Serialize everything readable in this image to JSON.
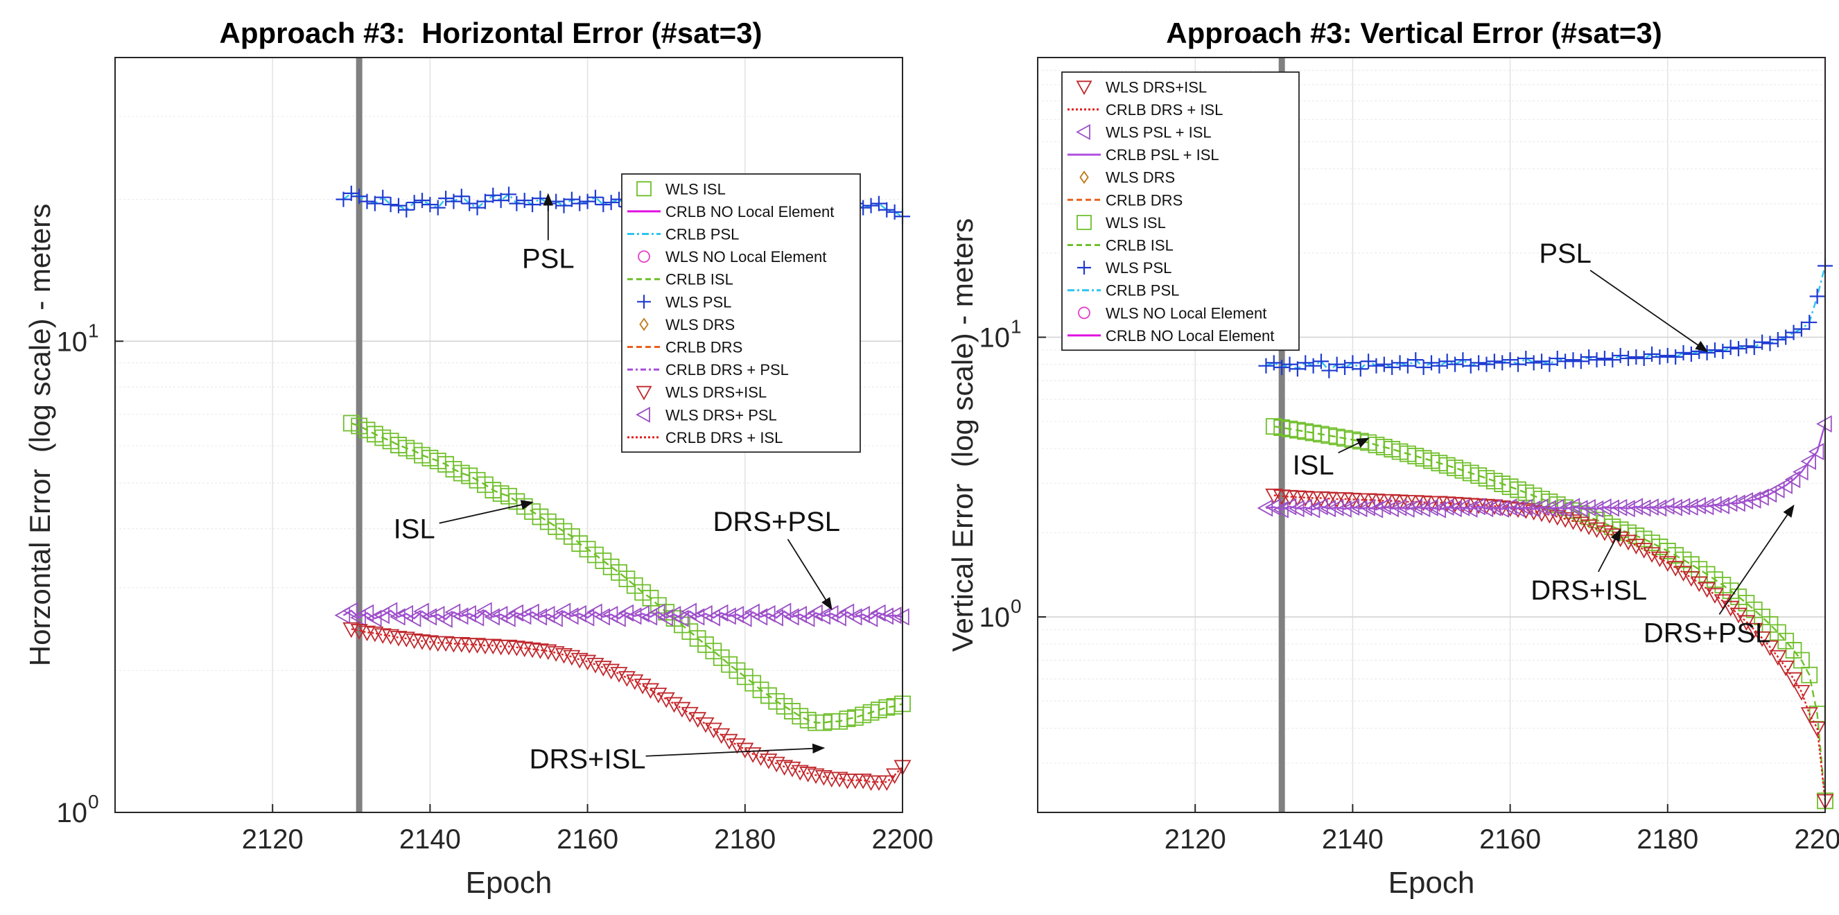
{
  "chart_data": [
    {
      "type": "line",
      "title": "Approach #3:  Horizontal Error (#sat=3)",
      "xlabel": "Epoch",
      "ylabel": "Horzontal Error  (log scale) - meters",
      "xlim": [
        2100,
        2200
      ],
      "ylim": [
        1,
        40
      ],
      "yscale": "log",
      "grid": true,
      "xticks": [
        "2120",
        "2140",
        "2160",
        "2180",
        "2200"
      ],
      "yticks": [
        {
          "base": "10",
          "exp": "0"
        },
        {
          "base": "10",
          "exp": "1"
        }
      ],
      "event_line_x": 2131,
      "legend_position": "upper-right",
      "legend": [
        {
          "label": "WLS ISL",
          "series": "isl",
          "kind": "marker"
        },
        {
          "label": "CRLB NO Local Element",
          "series": "none",
          "kind": "line"
        },
        {
          "label": "CRLB PSL",
          "series": "psl",
          "kind": "line"
        },
        {
          "label": "WLS NO Local Element",
          "series": "none",
          "kind": "marker"
        },
        {
          "label": "CRLB ISL",
          "series": "isl",
          "kind": "line"
        },
        {
          "label": "WLS PSL",
          "series": "psl",
          "kind": "marker"
        },
        {
          "label": "WLS DRS",
          "series": "drs",
          "kind": "marker"
        },
        {
          "label": "CRLB DRS",
          "series": "drs",
          "kind": "line"
        },
        {
          "label": "CRLB DRS + PSL",
          "series": "drspsl",
          "kind": "line"
        },
        {
          "label": "WLS DRS+ISL",
          "series": "drsisl",
          "kind": "marker"
        },
        {
          "label": "WLS DRS+ PSL",
          "series": "drspsl",
          "kind": "marker"
        },
        {
          "label": "CRLB DRS + ISL",
          "series": "drsisl",
          "kind": "line"
        }
      ],
      "annotations": [
        {
          "text": "PSL",
          "text_at": [
            2155,
            15.0
          ],
          "arrow_to": [
            2155,
            20.5
          ]
        },
        {
          "text": "ISL",
          "text_at": [
            2138,
            4.0
          ],
          "arrow_to": [
            2153,
            4.55
          ]
        },
        {
          "text": "DRS+PSL",
          "text_at": [
            2184,
            4.15
          ],
          "arrow_to": [
            2191,
            2.7
          ]
        },
        {
          "text": "DRS+ISL",
          "text_at": [
            2160,
            1.3
          ],
          "arrow_to": [
            2190,
            1.37
          ]
        }
      ],
      "series": [
        {
          "key": "psl",
          "name": "PSL",
          "x_start": 2129,
          "x_end": 2200,
          "values": [
            20.0,
            20.6,
            20.3,
            19.8,
            19.6,
            20.2,
            19.5,
            19.4,
            19.0,
            19.7,
            19.9,
            19.5,
            19.2,
            20.1,
            19.8,
            20.3,
            19.6,
            19.2,
            19.8,
            20.4,
            19.9,
            20.5,
            19.6,
            19.9,
            19.5,
            20.1,
            19.6,
            19.8,
            19.4,
            20.0,
            19.6,
            19.8,
            20.2,
            19.5,
            19.7,
            20.0,
            19.3,
            19.9,
            20.1,
            19.8,
            19.4,
            19.6,
            20.0,
            19.7,
            19.8,
            19.5,
            20.1,
            19.6,
            19.4,
            20.2,
            19.7,
            19.5,
            19.8,
            19.3,
            19.6,
            20.0,
            19.4,
            19.2,
            19.8,
            19.6,
            19.5,
            19.7,
            19.3,
            19.1,
            19.5,
            19.6,
            19.2,
            19.4,
            19.6,
            19.0,
            18.8,
            18.4
          ]
        },
        {
          "key": "isl",
          "name": "ISL",
          "x_start": 2130,
          "x_end": 2200,
          "values": [
            6.7,
            6.61,
            6.48,
            6.35,
            6.24,
            6.14,
            6.02,
            5.93,
            5.85,
            5.73,
            5.65,
            5.57,
            5.48,
            5.35,
            5.25,
            5.18,
            5.07,
            4.96,
            4.83,
            4.75,
            4.69,
            4.57,
            4.46,
            4.35,
            4.24,
            4.14,
            4.04,
            3.95,
            3.85,
            3.72,
            3.62,
            3.52,
            3.42,
            3.32,
            3.23,
            3.13,
            3.03,
            2.93,
            2.85,
            2.75,
            2.66,
            2.58,
            2.5,
            2.42,
            2.34,
            2.27,
            2.2,
            2.13,
            2.06,
            2.0,
            1.94,
            1.88,
            1.82,
            1.77,
            1.72,
            1.68,
            1.64,
            1.6,
            1.57,
            1.55,
            1.55,
            1.56,
            1.56,
            1.58,
            1.59,
            1.61,
            1.63,
            1.65,
            1.67,
            1.68,
            1.7
          ]
        },
        {
          "key": "drspsl",
          "name": "DRS+PSL",
          "x_start": 2129,
          "x_end": 2200,
          "values": [
            2.62,
            2.68,
            2.59,
            2.65,
            2.58,
            2.62,
            2.68,
            2.6,
            2.64,
            2.58,
            2.67,
            2.6,
            2.63,
            2.57,
            2.66,
            2.61,
            2.64,
            2.59,
            2.68,
            2.6,
            2.63,
            2.58,
            2.65,
            2.61,
            2.66,
            2.6,
            2.63,
            2.58,
            2.67,
            2.61,
            2.64,
            2.59,
            2.66,
            2.6,
            2.63,
            2.58,
            2.65,
            2.61,
            2.64,
            2.6,
            2.66,
            2.59,
            2.63,
            2.58,
            2.67,
            2.6,
            2.64,
            2.59,
            2.65,
            2.61,
            2.63,
            2.58,
            2.66,
            2.6,
            2.64,
            2.59,
            2.67,
            2.6,
            2.63,
            2.58,
            2.65,
            2.61,
            2.64,
            2.59,
            2.66,
            2.6,
            2.63,
            2.58,
            2.65,
            2.61,
            2.62,
            2.6
          ]
        },
        {
          "key": "drsisl",
          "name": "DRS+ISL",
          "x_start": 2130,
          "x_end": 2200,
          "values": [
            2.45,
            2.43,
            2.41,
            2.4,
            2.38,
            2.37,
            2.35,
            2.34,
            2.32,
            2.31,
            2.3,
            2.29,
            2.29,
            2.28,
            2.28,
            2.27,
            2.27,
            2.26,
            2.26,
            2.25,
            2.25,
            2.24,
            2.23,
            2.22,
            2.21,
            2.2,
            2.18,
            2.16,
            2.14,
            2.11,
            2.09,
            2.06,
            2.03,
            2.0,
            1.97,
            1.93,
            1.9,
            1.86,
            1.82,
            1.78,
            1.74,
            1.7,
            1.66,
            1.62,
            1.58,
            1.54,
            1.5,
            1.46,
            1.42,
            1.39,
            1.36,
            1.33,
            1.31,
            1.29,
            1.27,
            1.25,
            1.24,
            1.22,
            1.21,
            1.2,
            1.19,
            1.18,
            1.18,
            1.17,
            1.17,
            1.17,
            1.16,
            1.16,
            1.16,
            1.2,
            1.25
          ]
        }
      ]
    },
    {
      "type": "line",
      "title": "Approach #3: Vertical Error (#sat=3)",
      "xlabel": "Epoch",
      "ylabel": "Vertical Error  (log scale) - meters",
      "xlim": [
        2100,
        2200
      ],
      "ylim": [
        0.2,
        100
      ],
      "yscale": "log",
      "grid": true,
      "xticks": [
        "2120",
        "2140",
        "2160",
        "2180",
        "2200"
      ],
      "yticks": [
        {
          "base": "10",
          "exp": "0"
        },
        {
          "base": "10",
          "exp": "1"
        }
      ],
      "event_line_x": 2131,
      "legend_position": "upper-left",
      "legend": [
        {
          "label": "WLS DRS+ISL",
          "series": "drsisl",
          "kind": "marker"
        },
        {
          "label": "CRLB DRS + ISL",
          "series": "drsisl",
          "kind": "line"
        },
        {
          "label": "WLS PSL + ISL",
          "series": "pslisl",
          "kind": "marker"
        },
        {
          "label": "CRLB PSL + ISL",
          "series": "pslisl",
          "kind": "line"
        },
        {
          "label": "WLS DRS",
          "series": "drs",
          "kind": "marker"
        },
        {
          "label": "CRLB DRS",
          "series": "drs",
          "kind": "line"
        },
        {
          "label": "WLS ISL",
          "series": "isl",
          "kind": "marker"
        },
        {
          "label": "CRLB ISL",
          "series": "isl",
          "kind": "line"
        },
        {
          "label": "WLS PSL",
          "series": "psl",
          "kind": "marker"
        },
        {
          "label": "CRLB PSL",
          "series": "psl",
          "kind": "line"
        },
        {
          "label": "WLS NO Local Element",
          "series": "none",
          "kind": "marker"
        },
        {
          "label": "CRLB NO Local Element",
          "series": "none",
          "kind": "line"
        }
      ],
      "annotations": [
        {
          "text": "PSL",
          "text_at": [
            2167,
            20.0
          ],
          "arrow_to": [
            2185,
            8.9
          ]
        },
        {
          "text": "ISL",
          "text_at": [
            2135,
            3.5
          ],
          "arrow_to": [
            2142,
            4.35
          ]
        },
        {
          "text": "DRS+ISL",
          "text_at": [
            2170,
            1.25
          ],
          "arrow_to": [
            2174,
            2.05
          ]
        },
        {
          "text": "DRS+PSL",
          "text_at": [
            2185,
            0.88
          ],
          "arrow_to": [
            2196,
            2.5
          ]
        }
      ],
      "series": [
        {
          "key": "psl",
          "name": "PSL",
          "x_start": 2129,
          "x_end": 2200,
          "values": [
            7.9,
            8.1,
            7.8,
            8.0,
            7.7,
            8.1,
            7.9,
            8.2,
            7.6,
            8.0,
            7.8,
            8.1,
            7.7,
            8.2,
            7.9,
            8.0,
            7.8,
            8.1,
            7.9,
            8.3,
            7.8,
            8.1,
            7.9,
            8.2,
            8.0,
            8.3,
            7.9,
            8.1,
            8.0,
            8.2,
            8.1,
            8.3,
            8.0,
            8.4,
            8.1,
            8.2,
            8.0,
            8.4,
            8.2,
            8.3,
            8.2,
            8.5,
            8.3,
            8.4,
            8.3,
            8.6,
            8.4,
            8.5,
            8.4,
            8.7,
            8.5,
            8.6,
            8.5,
            8.8,
            8.7,
            8.9,
            8.8,
            9.0,
            8.9,
            9.2,
            9.1,
            9.3,
            9.2,
            9.6,
            9.5,
            9.8,
            10.0,
            10.4,
            10.7,
            11.3,
            14.0,
            18.0
          ]
        },
        {
          "key": "isl",
          "name": "ISL",
          "x_start": 2130,
          "x_end": 2200,
          "values": [
            4.8,
            4.75,
            4.7,
            4.65,
            4.6,
            4.55,
            4.5,
            4.45,
            4.4,
            4.35,
            4.3,
            4.25,
            4.2,
            4.12,
            4.05,
            3.98,
            3.9,
            3.83,
            3.76,
            3.69,
            3.62,
            3.55,
            3.48,
            3.41,
            3.34,
            3.27,
            3.2,
            3.13,
            3.06,
            2.99,
            2.92,
            2.85,
            2.78,
            2.71,
            2.64,
            2.58,
            2.52,
            2.46,
            2.4,
            2.34,
            2.28,
            2.22,
            2.16,
            2.1,
            2.05,
            2.0,
            1.95,
            1.9,
            1.84,
            1.78,
            1.72,
            1.66,
            1.6,
            1.54,
            1.48,
            1.42,
            1.36,
            1.3,
            1.24,
            1.18,
            1.12,
            1.06,
            1.0,
            0.94,
            0.88,
            0.82,
            0.76,
            0.7,
            0.62,
            0.45,
            0.22
          ]
        },
        {
          "key": "drsisl",
          "name": "DRS+ISL",
          "x_start": 2130,
          "x_end": 2200,
          "values": [
            2.72,
            2.7,
            2.69,
            2.68,
            2.67,
            2.66,
            2.66,
            2.65,
            2.64,
            2.64,
            2.63,
            2.62,
            2.62,
            2.61,
            2.6,
            2.6,
            2.59,
            2.58,
            2.58,
            2.57,
            2.56,
            2.56,
            2.55,
            2.54,
            2.53,
            2.52,
            2.51,
            2.5,
            2.49,
            2.47,
            2.45,
            2.43,
            2.41,
            2.38,
            2.35,
            2.32,
            2.28,
            2.24,
            2.2,
            2.16,
            2.11,
            2.06,
            2.01,
            1.96,
            1.91,
            1.86,
            1.8,
            1.74,
            1.68,
            1.62,
            1.56,
            1.5,
            1.44,
            1.38,
            1.32,
            1.26,
            1.2,
            1.14,
            1.08,
            1.02,
            0.96,
            0.9,
            0.84,
            0.78,
            0.72,
            0.66,
            0.6,
            0.54,
            0.45,
            0.4,
            0.22
          ]
        },
        {
          "key": "drspsl",
          "name": "DRS+PSL",
          "x_start": 2129,
          "x_end": 2200,
          "values": [
            2.45,
            2.47,
            2.42,
            2.48,
            2.44,
            2.46,
            2.42,
            2.48,
            2.44,
            2.46,
            2.43,
            2.47,
            2.44,
            2.46,
            2.42,
            2.48,
            2.44,
            2.46,
            2.43,
            2.47,
            2.44,
            2.46,
            2.42,
            2.47,
            2.44,
            2.46,
            2.43,
            2.48,
            2.44,
            2.46,
            2.43,
            2.47,
            2.44,
            2.46,
            2.43,
            2.47,
            2.44,
            2.46,
            2.43,
            2.48,
            2.44,
            2.46,
            2.43,
            2.47,
            2.45,
            2.46,
            2.44,
            2.48,
            2.45,
            2.47,
            2.45,
            2.49,
            2.46,
            2.48,
            2.47,
            2.5,
            2.48,
            2.52,
            2.5,
            2.55,
            2.55,
            2.6,
            2.62,
            2.68,
            2.75,
            2.85,
            2.95,
            3.1,
            3.3,
            3.6,
            3.9,
            4.9
          ]
        }
      ]
    }
  ],
  "styles": {
    "psl": {
      "color": "#1f3bd1",
      "line": "#2ec4f0",
      "marker": "plus"
    },
    "isl": {
      "color": "#6fbf2a",
      "line": "#6fbf2a",
      "marker": "square"
    },
    "drspsl": {
      "color": "#9a4fc4",
      "line": "#a64ddb",
      "marker": "triangle-left"
    },
    "drsisl": {
      "color": "#c0282d",
      "line": "#e01e1e",
      "marker": "triangle-down"
    },
    "drs": {
      "color": "#c07818",
      "line": "#e8601e",
      "marker": "diamond"
    },
    "pslisl": {
      "color": "#9a4fc4",
      "line": "#b050e0",
      "marker": "triangle-left"
    },
    "none": {
      "color": "#e040c8",
      "line": "#e010e0",
      "marker": "circle"
    }
  }
}
